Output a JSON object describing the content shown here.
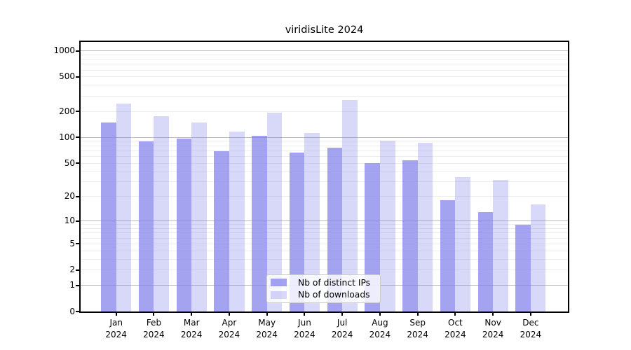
{
  "chart_data": {
    "type": "bar",
    "title": "viridisLite 2024",
    "scale": "log1p",
    "categories": [
      "Jan",
      "Feb",
      "Mar",
      "Apr",
      "May",
      "Jun",
      "Jul",
      "Aug",
      "Sep",
      "Oct",
      "Nov",
      "Dec"
    ],
    "year": "2024",
    "series": [
      {
        "name": "Nb of distinct IPs",
        "color": "rgba(127,127,234,0.72)",
        "color_hex_displayed": "#a6a6f1",
        "values": [
          150,
          90,
          97,
          69,
          105,
          66,
          76,
          50,
          54,
          18,
          13,
          9
        ]
      },
      {
        "name": "Nb of downloads",
        "color": "rgba(127,127,234,0.30)",
        "color_hex_displayed": "#d9d9f8",
        "values": [
          245,
          176,
          150,
          116,
          193,
          113,
          269,
          91,
          87,
          34,
          32,
          16
        ]
      }
    ],
    "y_ticks": [
      1000,
      500,
      200,
      100,
      50,
      20,
      10,
      5,
      2,
      1,
      0
    ],
    "ylim": [
      0,
      1265
    ],
    "grid": true,
    "legend_position": "lower center",
    "colors": {
      "major_gridline": "#b9b9b9",
      "minor_gridline": "#ededed",
      "axis": "#000000",
      "legend_border": "#cccccc"
    }
  }
}
